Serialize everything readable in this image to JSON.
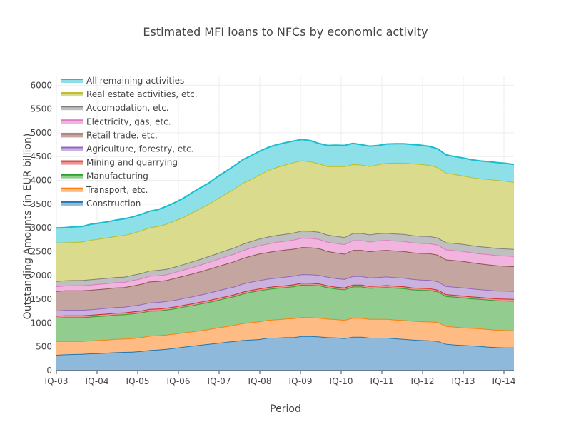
{
  "chart_data": {
    "type": "area",
    "stacked": true,
    "title": "Estimated MFI loans to NFCs by economic activity",
    "xlabel": "Period",
    "ylabel": "Outstanding Amounts (in EUR billion)",
    "ylim": [
      0,
      6200
    ],
    "yticks": [
      0,
      500,
      1000,
      1500,
      2000,
      2500,
      3000,
      3500,
      4000,
      4500,
      5000,
      5500,
      6000
    ],
    "xticks": [
      "IQ-03",
      "IQ-04",
      "IQ-05",
      "IQ-06",
      "IQ-07",
      "IQ-08",
      "IQ-09",
      "IQ-10",
      "IQ-11",
      "IQ-12",
      "IQ-13",
      "IQ-14"
    ],
    "x_start": "IQ-03",
    "frequency": "quarterly",
    "legend_position": "top-left",
    "grid": true,
    "series": [
      {
        "name": "Construction",
        "color": "#1f77b4",
        "fill": "#8fb9da",
        "values": [
          330,
          340,
          345,
          350,
          360,
          365,
          375,
          385,
          390,
          395,
          410,
          430,
          440,
          455,
          475,
          500,
          520,
          540,
          560,
          580,
          600,
          620,
          640,
          650,
          660,
          690,
          690,
          700,
          700,
          725,
          725,
          715,
          700,
          695,
          680,
          710,
          710,
          690,
          690,
          690,
          675,
          665,
          650,
          640,
          635,
          620,
          560,
          545,
          535,
          525,
          515,
          500,
          490,
          485,
          485
        ]
      },
      {
        "name": "Transport, etc.",
        "color": "#ff7f0e",
        "fill": "#ffbb84",
        "values": [
          290,
          280,
          275,
          270,
          270,
          275,
          275,
          280,
          280,
          285,
          290,
          300,
          300,
          300,
          300,
          300,
          300,
          305,
          310,
          320,
          330,
          340,
          355,
          365,
          375,
          375,
          385,
          390,
          400,
          400,
          395,
          395,
          390,
          385,
          385,
          395,
          395,
          395,
          395,
          395,
          395,
          395,
          395,
          395,
          395,
          400,
          375,
          375,
          370,
          370,
          370,
          370,
          365,
          365,
          360
        ]
      },
      {
        "name": "Manufacturing",
        "color": "#2ca02c",
        "fill": "#93cc8f",
        "values": [
          490,
          500,
          500,
          500,
          500,
          505,
          505,
          510,
          510,
          520,
          520,
          525,
          520,
          525,
          530,
          540,
          550,
          560,
          570,
          580,
          590,
          600,
          620,
          640,
          650,
          650,
          660,
          660,
          670,
          680,
          680,
          680,
          660,
          640,
          640,
          660,
          660,
          650,
          660,
          670,
          670,
          670,
          660,
          660,
          660,
          640,
          630,
          630,
          630,
          620,
          620,
          620,
          620,
          620,
          620
        ]
      },
      {
        "name": "Mining and quarrying",
        "color": "#d62728",
        "fill": "#e99393",
        "values": [
          40,
          40,
          40,
          40,
          40,
          40,
          40,
          40,
          40,
          40,
          40,
          40,
          40,
          40,
          40,
          40,
          40,
          40,
          40,
          40,
          40,
          40,
          40,
          40,
          40,
          40,
          40,
          40,
          40,
          40,
          40,
          40,
          40,
          40,
          40,
          40,
          40,
          40,
          40,
          40,
          40,
          40,
          40,
          40,
          40,
          40,
          40,
          40,
          40,
          40,
          40,
          40,
          40,
          40,
          40
        ]
      },
      {
        "name": "Agriculture, forestry, etc.",
        "color": "#9467bd",
        "fill": "#c9b3de",
        "values": [
          110,
          115,
          115,
          115,
          115,
          115,
          120,
          120,
          120,
          125,
          130,
          135,
          140,
          140,
          140,
          140,
          145,
          150,
          155,
          160,
          165,
          165,
          170,
          170,
          175,
          175,
          175,
          180,
          180,
          180,
          180,
          180,
          180,
          180,
          180,
          180,
          180,
          180,
          180,
          180,
          180,
          180,
          180,
          175,
          175,
          175,
          170,
          170,
          170,
          170,
          165,
          165,
          165,
          165,
          165
        ]
      },
      {
        "name": "Retail trade. etc.",
        "color": "#8c564b",
        "fill": "#c4a5a0",
        "values": [
          410,
          410,
          410,
          410,
          410,
          410,
          410,
          410,
          410,
          420,
          430,
          440,
          440,
          440,
          460,
          470,
          480,
          490,
          500,
          510,
          520,
          530,
          540,
          550,
          560,
          560,
          570,
          570,
          570,
          570,
          570,
          560,
          540,
          540,
          530,
          550,
          550,
          550,
          560,
          560,
          560,
          560,
          560,
          560,
          560,
          560,
          560,
          560,
          555,
          550,
          540,
          535,
          530,
          525,
          520
        ]
      },
      {
        "name": "Electricity, gas, etc.",
        "color": "#e377c2",
        "fill": "#f0b4de",
        "values": [
          100,
          100,
          105,
          105,
          110,
          110,
          110,
          110,
          110,
          115,
          115,
          120,
          120,
          120,
          125,
          130,
          135,
          140,
          145,
          150,
          155,
          160,
          165,
          170,
          175,
          180,
          185,
          185,
          190,
          195,
          195,
          195,
          195,
          200,
          200,
          205,
          205,
          205,
          210,
          210,
          210,
          210,
          210,
          210,
          210,
          210,
          210,
          210,
          210,
          210,
          210,
          215,
          215,
          215,
          215
        ]
      },
      {
        "name": "Accomodation, etc.",
        "color": "#7f7f7f",
        "fill": "#bfbfbf",
        "values": [
          110,
          110,
          110,
          110,
          110,
          110,
          110,
          110,
          110,
          110,
          110,
          110,
          115,
          115,
          115,
          115,
          120,
          120,
          125,
          125,
          130,
          130,
          135,
          135,
          140,
          145,
          145,
          145,
          150,
          150,
          150,
          150,
          150,
          150,
          150,
          150,
          150,
          150,
          150,
          150,
          150,
          150,
          150,
          150,
          150,
          150,
          150,
          150,
          150,
          150,
          150,
          150,
          150,
          150,
          150
        ]
      },
      {
        "name": "Real estate activities, etc.",
        "color": "#bcbd22",
        "fill": "#dbdb8d",
        "values": [
          810,
          800,
          800,
          810,
          830,
          840,
          850,
          860,
          880,
          880,
          900,
          910,
          920,
          950,
          970,
          990,
          1030,
          1070,
          1100,
          1150,
          1190,
          1240,
          1280,
          1310,
          1350,
          1400,
          1430,
          1460,
          1480,
          1480,
          1460,
          1440,
          1440,
          1470,
          1490,
          1450,
          1440,
          1440,
          1450,
          1470,
          1490,
          1500,
          1510,
          1510,
          1500,
          1480,
          1460,
          1450,
          1440,
          1430,
          1430,
          1430,
          1430,
          1425,
          1410
        ]
      },
      {
        "name": "All remaining activities",
        "color": "#17becf",
        "fill": "#8ddfe8",
        "values": [
          310,
          310,
          320,
          320,
          330,
          330,
          330,
          340,
          340,
          340,
          340,
          340,
          350,
          370,
          380,
          400,
          420,
          430,
          440,
          460,
          470,
          480,
          490,
          490,
          490,
          480,
          470,
          460,
          450,
          440,
          440,
          420,
          440,
          440,
          440,
          440,
          420,
          420,
          400,
          400,
          400,
          400,
          400,
          400,
          390,
          390,
          380,
          370,
          370,
          370,
          370,
          370,
          370,
          370,
          370
        ]
      }
    ]
  }
}
